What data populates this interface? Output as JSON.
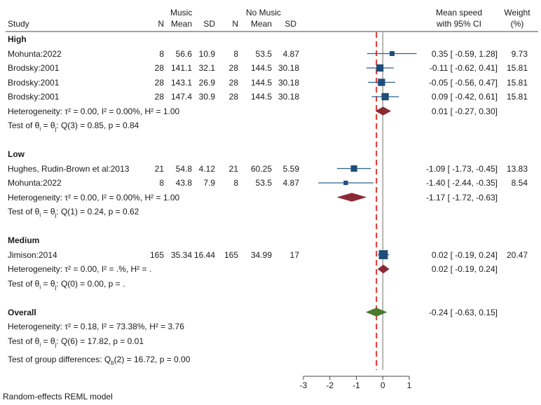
{
  "header": {
    "col_study": "Study",
    "group_music": "Music",
    "group_nomusic": "No Music",
    "col_n": "N",
    "col_mean": "Mean",
    "col_sd": "SD",
    "col_effect_line1": "Mean speed",
    "col_effect_line2": "with 95% CI",
    "col_weight_line1": "Weight",
    "col_weight_line2": "(%)"
  },
  "footer": {
    "model_note": "Random-effects REML model"
  },
  "chart_data": {
    "type": "forest",
    "xaxis": {
      "ticks": [
        "-3",
        "-2",
        "-1",
        "0",
        "1"
      ],
      "range": [
        -3,
        1
      ]
    },
    "overall_line": -0.24,
    "subgroups": [
      {
        "name": "High",
        "studies": [
          {
            "study": "Mohunta:2022",
            "n1": "8",
            "mean1": "56.6",
            "sd1": "10.9",
            "n2": "8",
            "mean2": "53.5",
            "sd2": "4.87",
            "es": 0.35,
            "lo": -0.59,
            "hi": 1.28,
            "ci_text": "0.35 [ -0.59,  1.28]",
            "weight": "9.73",
            "weight_pct": 9.73
          },
          {
            "study": "Brodsky:2001",
            "n1": "28",
            "mean1": "141.1",
            "sd1": "32.1",
            "n2": "28",
            "mean2": "144.5",
            "sd2": "30.18",
            "es": -0.11,
            "lo": -0.62,
            "hi": 0.41,
            "ci_text": "-0.11 [ -0.62,  0.41]",
            "weight": "15.81",
            "weight_pct": 15.81
          },
          {
            "study": "Brodsky:2001",
            "n1": "28",
            "mean1": "143.1",
            "sd1": "26.9",
            "n2": "28",
            "mean2": "144.5",
            "sd2": "30.18",
            "es": -0.05,
            "lo": -0.56,
            "hi": 0.47,
            "ci_text": "-0.05 [ -0.56,  0.47]",
            "weight": "15.81",
            "weight_pct": 15.81
          },
          {
            "study": "Brodsky:2001",
            "n1": "28",
            "mean1": "147.4",
            "sd1": "30.9",
            "n2": "28",
            "mean2": "144.5",
            "sd2": "30.18",
            "es": 0.09,
            "lo": -0.42,
            "hi": 0.61,
            "ci_text": "0.09 [ -0.42,  0.61]",
            "weight": "15.81",
            "weight_pct": 15.81
          }
        ],
        "pooled": {
          "es": 0.01,
          "lo": -0.27,
          "hi": 0.3,
          "ci_text": "0.01 [ -0.27,  0.30]"
        },
        "heterogeneity": "Heterogeneity: τ² = 0.00, I² = 0.00%, H² = 1.00",
        "test": "Test of θi = θj: Q(3) = 0.85, p = 0.84"
      },
      {
        "name": "Low",
        "studies": [
          {
            "study": "Hughes, Rudin-Brown et al:2013",
            "n1": "21",
            "mean1": "54.8",
            "sd1": "4.12",
            "n2": "21",
            "mean2": "60.25",
            "sd2": "5.59",
            "es": -1.09,
            "lo": -1.73,
            "hi": -0.45,
            "ci_text": "-1.09 [ -1.73, -0.45]",
            "weight": "13.83",
            "weight_pct": 13.83
          },
          {
            "study": "Mohunta:2022",
            "n1": "8",
            "mean1": "43.8",
            "sd1": "7.9",
            "n2": "8",
            "mean2": "53.5",
            "sd2": "4.87",
            "es": -1.4,
            "lo": -2.44,
            "hi": -0.35,
            "ci_text": "-1.40 [ -2.44, -0.35]",
            "weight": "8.54",
            "weight_pct": 8.54
          }
        ],
        "pooled": {
          "es": -1.17,
          "lo": -1.72,
          "hi": -0.63,
          "ci_text": "-1.17 [ -1.72, -0.63]"
        },
        "heterogeneity": "Heterogeneity: τ² = 0.00, I² = 0.00%, H² = 1.00",
        "test": "Test of θi = θj: Q(1) = 0.24, p = 0.62"
      },
      {
        "name": "Medium",
        "studies": [
          {
            "study": "Jimison:2014",
            "n1": "165",
            "mean1": "35.34",
            "sd1": "16.44",
            "n2": "165",
            "mean2": "34.99",
            "sd2": "17",
            "es": 0.02,
            "lo": -0.19,
            "hi": 0.24,
            "ci_text": "0.02 [ -0.19,  0.24]",
            "weight": "20.47",
            "weight_pct": 20.47
          }
        ],
        "pooled": {
          "es": 0.02,
          "lo": -0.19,
          "hi": 0.24,
          "ci_text": "0.02 [ -0.19,  0.24]"
        },
        "heterogeneity": "Heterogeneity: τ² = 0.00, I² = .%, H² = .",
        "test": "Test of θi = θj: Q(0) = 0.00, p = ."
      }
    ],
    "overall": {
      "name": "Overall",
      "es": -0.24,
      "lo": -0.63,
      "hi": 0.15,
      "ci_text": "-0.24 [ -0.63,  0.15]",
      "heterogeneity": "Heterogeneity: τ² = 0.18, I² = 73.38%, H² = 3.76",
      "test": "Test of θi = θj: Q(6) = 17.82, p = 0.01",
      "group_test": "Test of group differences: Qb(2) = 16.72, p = 0.00"
    },
    "colors": {
      "study_marker": "#1f4e79",
      "ci_line": "#2f5f8f",
      "subgroup_diamond": "#8b2a35",
      "overall_diamond": "#4a7a2a",
      "reference_line": "#e03030",
      "axis": "#444444",
      "text": "#1a1a1a"
    }
  }
}
